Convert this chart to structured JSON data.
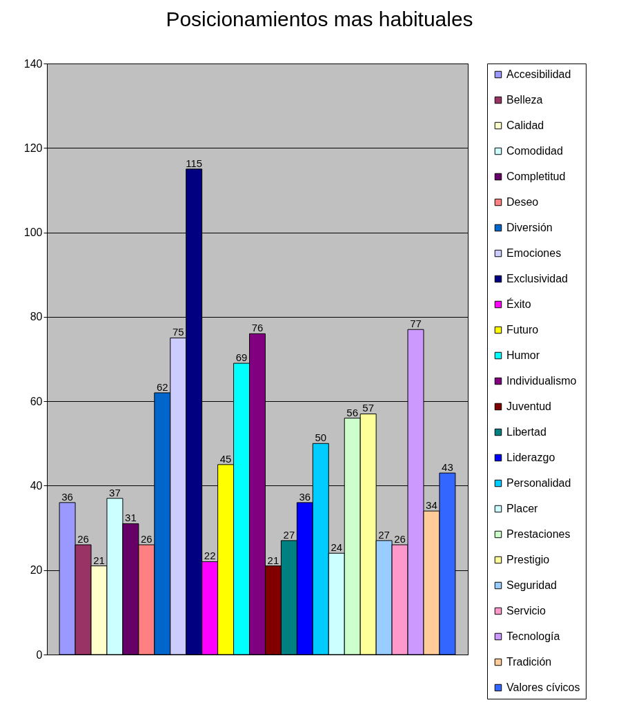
{
  "chart_data": {
    "type": "bar",
    "title": "Posicionamientos mas habituales",
    "categories": [
      null
    ],
    "ylim": [
      0,
      140
    ],
    "yticks": [
      0,
      20,
      40,
      60,
      80,
      100,
      120,
      140
    ],
    "grid": "y",
    "legend": "right",
    "data_labels": true,
    "series": [
      {
        "name": "Accesibilidad",
        "color": "#9999ff",
        "values": [
          36
        ]
      },
      {
        "name": "Belleza",
        "color": "#993366",
        "values": [
          26
        ]
      },
      {
        "name": "Calidad",
        "color": "#ffffcc",
        "values": [
          21
        ]
      },
      {
        "name": "Comodidad",
        "color": "#ccffff",
        "values": [
          37
        ]
      },
      {
        "name": "Completitud",
        "color": "#660066",
        "values": [
          31
        ]
      },
      {
        "name": "Deseo",
        "color": "#ff8080",
        "values": [
          26
        ]
      },
      {
        "name": "Diversión",
        "color": "#0066cc",
        "values": [
          62
        ]
      },
      {
        "name": "Emociones",
        "color": "#ccccff",
        "values": [
          75
        ]
      },
      {
        "name": "Exclusividad",
        "color": "#000080",
        "values": [
          115
        ]
      },
      {
        "name": "Éxito",
        "color": "#ff00ff",
        "values": [
          22
        ]
      },
      {
        "name": "Futuro",
        "color": "#ffff00",
        "values": [
          45
        ]
      },
      {
        "name": "Humor",
        "color": "#00ffff",
        "values": [
          69
        ]
      },
      {
        "name": "Individualismo",
        "color": "#800080",
        "values": [
          76
        ]
      },
      {
        "name": "Juventud",
        "color": "#800000",
        "values": [
          21
        ]
      },
      {
        "name": "Libertad",
        "color": "#008080",
        "values": [
          27
        ]
      },
      {
        "name": "Liderazgo",
        "color": "#0000ff",
        "values": [
          36
        ]
      },
      {
        "name": "Personalidad",
        "color": "#00ccff",
        "values": [
          50
        ]
      },
      {
        "name": "Placer",
        "color": "#ccffff",
        "values": [
          24
        ]
      },
      {
        "name": "Prestaciones",
        "color": "#ccffcc",
        "values": [
          56
        ]
      },
      {
        "name": "Prestigio",
        "color": "#ffff99",
        "values": [
          57
        ]
      },
      {
        "name": "Seguridad",
        "color": "#99ccff",
        "values": [
          27
        ]
      },
      {
        "name": "Servicio",
        "color": "#ff99cc",
        "values": [
          26
        ]
      },
      {
        "name": "Tecnología",
        "color": "#cc99ff",
        "values": [
          77
        ]
      },
      {
        "name": "Tradición",
        "color": "#ffcc99",
        "values": [
          34
        ]
      },
      {
        "name": "Valores cívicos",
        "color": "#3366ff",
        "values": [
          43
        ]
      }
    ]
  }
}
